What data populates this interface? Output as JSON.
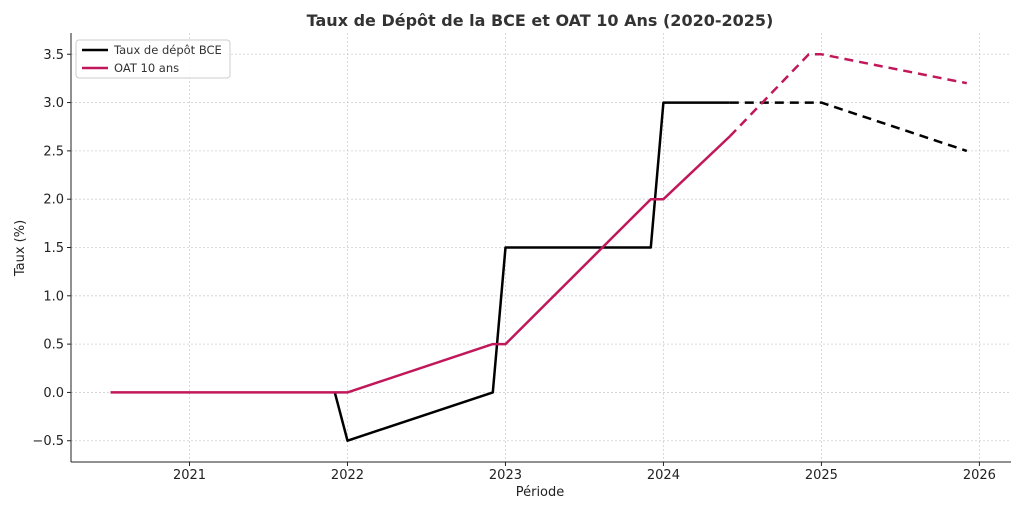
{
  "chart_data": {
    "type": "line",
    "title": "Taux de Dépôt de la BCE et OAT 10 Ans (2020-2025)",
    "xlabel": "Période",
    "ylabel": "Taux (%)",
    "xlim": [
      2020.25,
      2026.2
    ],
    "ylim": [
      -0.72,
      3.72
    ],
    "grid": true,
    "legend_position": "top-left",
    "x_ticks": [
      2021,
      2022,
      2023,
      2024,
      2025,
      2026
    ],
    "x_tick_labels": [
      "2021",
      "2022",
      "2023",
      "2024",
      "2025",
      "2026"
    ],
    "y_ticks": [
      -0.5,
      0.0,
      0.5,
      1.0,
      1.5,
      2.0,
      2.5,
      3.0,
      3.5
    ],
    "y_tick_labels": [
      "−0.5",
      "0.0",
      "0.5",
      "1.0",
      "1.5",
      "2.0",
      "2.5",
      "3.0",
      "3.5"
    ],
    "series": [
      {
        "name": "Taux de dépôt BCE",
        "color": "#000000",
        "solid": {
          "x": [
            2021.92,
            2022.0,
            2022.92,
            2023.0,
            2023.92,
            2024.0,
            2024.42
          ],
          "y": [
            0.0,
            -0.5,
            0.0,
            1.5,
            1.5,
            3.0,
            3.0
          ]
        },
        "dashed": {
          "x": [
            2024.42,
            2025.0,
            2025.92
          ],
          "y": [
            3.0,
            3.0,
            2.5
          ]
        }
      },
      {
        "name": "OAT 10 ans",
        "color": "#c0185a",
        "solid": {
          "x": [
            2020.5,
            2022.0,
            2022.92,
            2023.0,
            2023.92,
            2024.0,
            2024.42
          ],
          "y": [
            0.0,
            0.0,
            0.5,
            0.5,
            2.0,
            2.0,
            2.65
          ]
        },
        "dashed": {
          "x": [
            2024.42,
            2024.92,
            2025.0,
            2025.92
          ],
          "y": [
            2.65,
            3.5,
            3.5,
            3.2
          ]
        }
      }
    ]
  }
}
